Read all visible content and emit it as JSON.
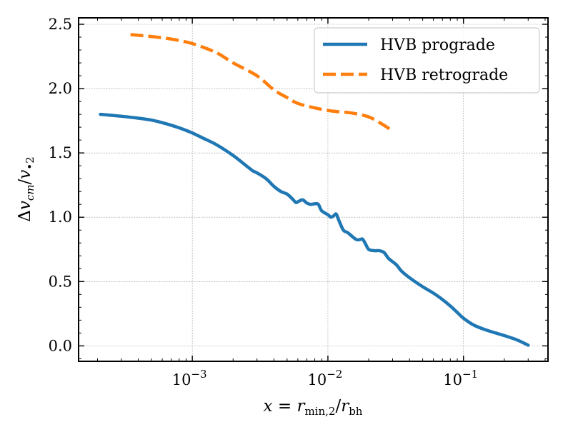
{
  "chart_data": {
    "type": "line",
    "title": "",
    "xlabel": "x = r_min,2 / r_bh",
    "ylabel": "Δv_cm / v_•2",
    "xscale": "log",
    "xlim": [
      0.000145,
      0.42
    ],
    "ylim": [
      -0.12,
      2.55
    ],
    "grid": true,
    "legend_position": "top-right",
    "x_ticks": [
      {
        "value": 0.001,
        "base": "10",
        "exp": "−3"
      },
      {
        "value": 0.01,
        "base": "10",
        "exp": "−2"
      },
      {
        "value": 0.1,
        "base": "10",
        "exp": "−1"
      }
    ],
    "y_ticks": [
      {
        "value": 0.0,
        "label": "0.0"
      },
      {
        "value": 0.5,
        "label": "0.5"
      },
      {
        "value": 1.0,
        "label": "1.0"
      },
      {
        "value": 1.5,
        "label": "1.5"
      },
      {
        "value": 2.0,
        "label": "2.0"
      },
      {
        "value": 2.5,
        "label": "2.5"
      }
    ],
    "series": [
      {
        "name": "HVB prograde",
        "color": "#1f77b4",
        "style": "solid",
        "points": [
          [
            0.00021,
            1.8
          ],
          [
            0.0003,
            1.785
          ],
          [
            0.0004,
            1.77
          ],
          [
            0.0005,
            1.755
          ],
          [
            0.0006,
            1.735
          ],
          [
            0.0007,
            1.715
          ],
          [
            0.0008,
            1.695
          ],
          [
            0.0009,
            1.675
          ],
          [
            0.001,
            1.655
          ],
          [
            0.0012,
            1.615
          ],
          [
            0.0015,
            1.565
          ],
          [
            0.002,
            1.48
          ],
          [
            0.0025,
            1.4
          ],
          [
            0.0028,
            1.36
          ],
          [
            0.003,
            1.345
          ],
          [
            0.0035,
            1.3
          ],
          [
            0.004,
            1.24
          ],
          [
            0.0045,
            1.2
          ],
          [
            0.005,
            1.18
          ],
          [
            0.0055,
            1.14
          ],
          [
            0.0058,
            1.115
          ],
          [
            0.006,
            1.12
          ],
          [
            0.0065,
            1.135
          ],
          [
            0.007,
            1.11
          ],
          [
            0.0075,
            1.1
          ],
          [
            0.008,
            1.105
          ],
          [
            0.0085,
            1.1
          ],
          [
            0.009,
            1.05
          ],
          [
            0.01,
            1.02
          ],
          [
            0.0105,
            1.0
          ],
          [
            0.011,
            1.01
          ],
          [
            0.0115,
            1.025
          ],
          [
            0.012,
            0.98
          ],
          [
            0.013,
            0.9
          ],
          [
            0.014,
            0.88
          ],
          [
            0.016,
            0.83
          ],
          [
            0.017,
            0.825
          ],
          [
            0.018,
            0.83
          ],
          [
            0.019,
            0.79
          ],
          [
            0.02,
            0.75
          ],
          [
            0.022,
            0.74
          ],
          [
            0.024,
            0.74
          ],
          [
            0.026,
            0.725
          ],
          [
            0.028,
            0.68
          ],
          [
            0.032,
            0.63
          ],
          [
            0.035,
            0.58
          ],
          [
            0.04,
            0.53
          ],
          [
            0.05,
            0.46
          ],
          [
            0.06,
            0.41
          ],
          [
            0.07,
            0.36
          ],
          [
            0.08,
            0.31
          ],
          [
            0.09,
            0.26
          ],
          [
            0.1,
            0.215
          ],
          [
            0.12,
            0.16
          ],
          [
            0.15,
            0.12
          ],
          [
            0.2,
            0.08
          ],
          [
            0.25,
            0.045
          ],
          [
            0.3,
            0.005
          ]
        ]
      },
      {
        "name": "HVB retrograde",
        "color": "#ff7f0e",
        "style": "dashed",
        "points": [
          [
            0.00035,
            2.42
          ],
          [
            0.0005,
            2.405
          ],
          [
            0.0007,
            2.385
          ],
          [
            0.001,
            2.35
          ],
          [
            0.0015,
            2.28
          ],
          [
            0.002,
            2.2
          ],
          [
            0.003,
            2.1
          ],
          [
            0.004,
            1.99
          ],
          [
            0.005,
            1.93
          ],
          [
            0.006,
            1.885
          ],
          [
            0.008,
            1.85
          ],
          [
            0.01,
            1.83
          ],
          [
            0.012,
            1.82
          ],
          [
            0.015,
            1.81
          ],
          [
            0.02,
            1.78
          ],
          [
            0.025,
            1.725
          ],
          [
            0.03,
            1.67
          ]
        ]
      }
    ]
  }
}
